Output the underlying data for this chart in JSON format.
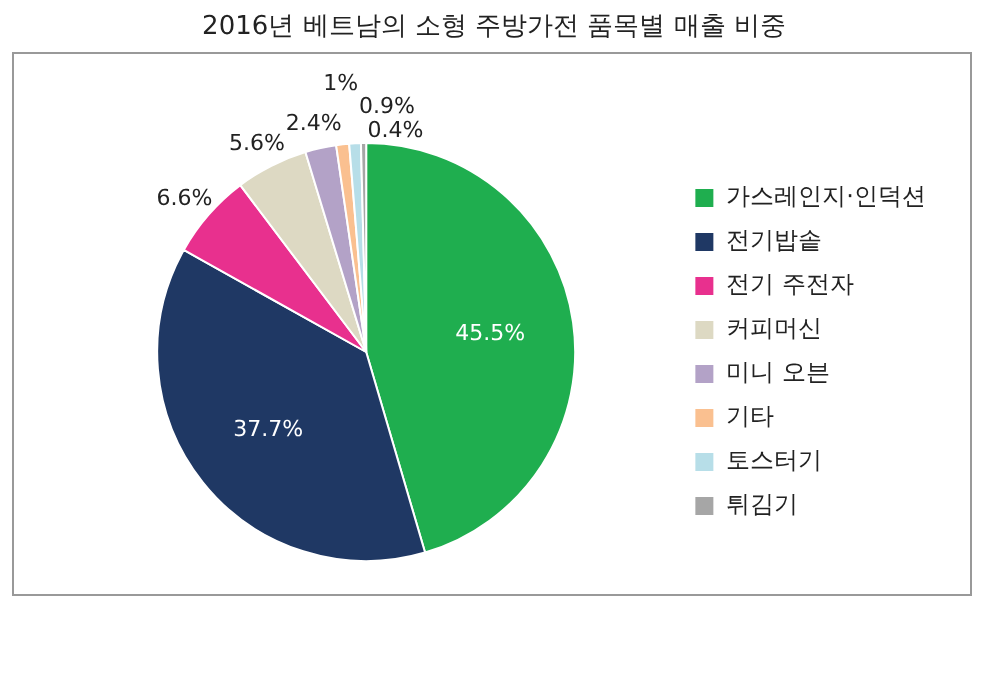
{
  "chart_data": {
    "type": "pie",
    "title": "2016년 베트남의 소형 주방가전 품목별 매출 비중",
    "categories": [
      "가스레인지·인덕션",
      "전기밥솥",
      "전기 주전자",
      "커피머신",
      "미니 오븐",
      "기타",
      "토스터기",
      "튀김기"
    ],
    "values": [
      45.5,
      37.7,
      6.6,
      5.6,
      2.4,
      1,
      0.9,
      0.4
    ],
    "value_labels": [
      "45.5%",
      "37.7%",
      "6.6%",
      "5.6%",
      "2.4%",
      "1%",
      "0.9%",
      "0.4%"
    ],
    "colors": [
      "#1fae4f",
      "#1f3864",
      "#e8308e",
      "#ddd9c3",
      "#b3a2c7",
      "#fac090",
      "#b7dee8",
      "#a6a6a6"
    ],
    "legend": "right"
  }
}
